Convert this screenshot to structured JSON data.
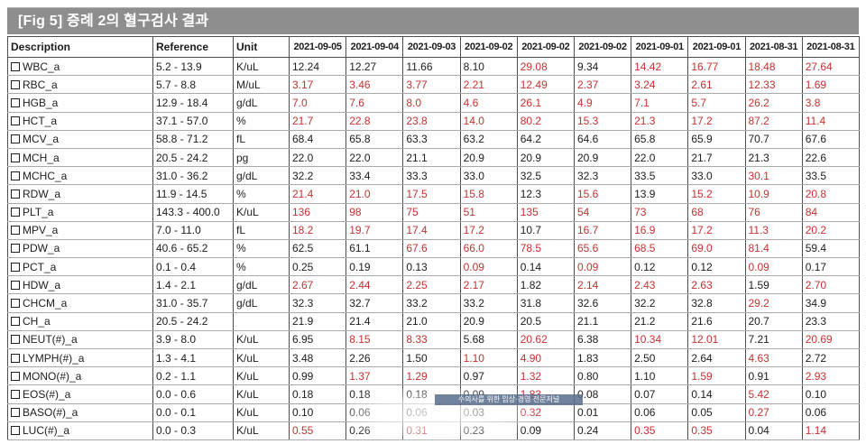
{
  "title": "[Fig 5] 증례 2의 혈구검사 결과",
  "watermark": {
    "text": "수의사를 위한 임상·경영 전문저널"
  },
  "colors": {
    "title_bg": "#8e8e8e",
    "title_text": "#ffffff",
    "normal_text": "#1d1d1d",
    "abnormal_text": "#c53232",
    "grid_vertical": "#4e4e4e",
    "grid_horizontal": "#aaaaaa",
    "watermark_bg": "#586c8c"
  },
  "table": {
    "headers": [
      "Description",
      "Reference",
      "Unit"
    ],
    "dates": [
      "2021-09-05",
      "2021-09-04",
      "2021-09-03",
      "2021-09-02",
      "2021-09-02",
      "2021-09-02",
      "2021-09-01",
      "2021-09-01",
      "2021-08-31",
      "2021-08-31"
    ],
    "rows": [
      {
        "name": "WBC_a",
        "reference": "5.2 - 13.9",
        "unit": "K/uL",
        "values": [
          "12.24",
          "12.27",
          "11.66",
          "8.10",
          "29.08",
          "9.34",
          "14.42",
          "16.77",
          "18.48",
          "27.64"
        ],
        "red": [
          false,
          false,
          false,
          false,
          true,
          false,
          true,
          true,
          true,
          true
        ]
      },
      {
        "name": "RBC_a",
        "reference": "5.7 - 8.8",
        "unit": "M/uL",
        "values": [
          "3.17",
          "3.46",
          "3.77",
          "2.21",
          "12.49",
          "2.37",
          "3.24",
          "2.61",
          "12.33",
          "1.69"
        ],
        "red": [
          true,
          true,
          true,
          true,
          true,
          true,
          true,
          true,
          true,
          true
        ]
      },
      {
        "name": "HGB_a",
        "reference": "12.9 - 18.4",
        "unit": "g/dL",
        "values": [
          "7.0",
          "7.6",
          "8.0",
          "4.6",
          "26.1",
          "4.9",
          "7.1",
          "5.7",
          "26.2",
          "3.8"
        ],
        "red": [
          true,
          true,
          true,
          true,
          true,
          true,
          true,
          true,
          true,
          true
        ]
      },
      {
        "name": "HCT_a",
        "reference": "37.1 - 57.0",
        "unit": "%",
        "values": [
          "21.7",
          "22.8",
          "23.8",
          "14.0",
          "80.2",
          "15.3",
          "21.3",
          "17.2",
          "87.2",
          "11.4"
        ],
        "red": [
          true,
          true,
          true,
          true,
          true,
          true,
          true,
          true,
          true,
          true
        ]
      },
      {
        "name": "MCV_a",
        "reference": "58.8 - 71.2",
        "unit": "fL",
        "values": [
          "68.4",
          "65.8",
          "63.3",
          "63.2",
          "64.2",
          "64.6",
          "65.8",
          "65.9",
          "70.7",
          "67.6"
        ],
        "red": [
          false,
          false,
          false,
          false,
          false,
          false,
          false,
          false,
          false,
          false
        ]
      },
      {
        "name": "MCH_a",
        "reference": "20.5 - 24.2",
        "unit": "pg",
        "values": [
          "22.0",
          "22.0",
          "21.1",
          "20.9",
          "20.9",
          "20.9",
          "22.0",
          "21.7",
          "21.3",
          "22.6"
        ],
        "red": [
          false,
          false,
          false,
          false,
          false,
          false,
          false,
          false,
          false,
          false
        ]
      },
      {
        "name": "MCHC_a",
        "reference": "31.0 - 36.2",
        "unit": "g/dL",
        "values": [
          "32.2",
          "33.4",
          "33.3",
          "33.0",
          "32.5",
          "32.3",
          "33.5",
          "33.0",
          "30.1",
          "33.5"
        ],
        "red": [
          false,
          false,
          false,
          false,
          false,
          false,
          false,
          false,
          true,
          false
        ]
      },
      {
        "name": "RDW_a",
        "reference": "11.9 - 14.5",
        "unit": "%",
        "values": [
          "21.4",
          "21.0",
          "17.5",
          "15.8",
          "12.3",
          "15.6",
          "13.9",
          "15.2",
          "10.9",
          "20.8"
        ],
        "red": [
          true,
          true,
          true,
          true,
          false,
          true,
          false,
          true,
          true,
          true
        ]
      },
      {
        "name": "PLT_a",
        "reference": "143.3 - 400.0",
        "unit": "K/uL",
        "values": [
          "136",
          "98",
          "75",
          "51",
          "135",
          "54",
          "73",
          "68",
          "76",
          "84"
        ],
        "red": [
          true,
          true,
          true,
          true,
          true,
          true,
          true,
          true,
          true,
          true
        ]
      },
      {
        "name": "MPV_a",
        "reference": "7.0 - 11.0",
        "unit": "fL",
        "values": [
          "18.2",
          "19.7",
          "17.4",
          "17.2",
          "10.7",
          "16.7",
          "16.9",
          "17.2",
          "11.3",
          "20.2"
        ],
        "red": [
          true,
          true,
          true,
          true,
          false,
          true,
          true,
          true,
          true,
          true
        ]
      },
      {
        "name": "PDW_a",
        "reference": "40.6 - 65.2",
        "unit": "%",
        "values": [
          "62.5",
          "61.1",
          "67.6",
          "66.0",
          "78.5",
          "65.6",
          "68.5",
          "69.0",
          "81.4",
          "59.4"
        ],
        "red": [
          false,
          false,
          true,
          true,
          true,
          true,
          true,
          true,
          true,
          false
        ]
      },
      {
        "name": "PCT_a",
        "reference": "0.1 - 0.4",
        "unit": "%",
        "values": [
          "0.25",
          "0.19",
          "0.13",
          "0.09",
          "0.14",
          "0.09",
          "0.12",
          "0.12",
          "0.09",
          "0.17"
        ],
        "red": [
          false,
          false,
          false,
          true,
          false,
          true,
          false,
          false,
          true,
          false
        ]
      },
      {
        "name": "HDW_a",
        "reference": "1.4 - 2.1",
        "unit": "g/dL",
        "values": [
          "2.67",
          "2.44",
          "2.25",
          "2.17",
          "1.82",
          "2.14",
          "2.43",
          "2.63",
          "1.59",
          "2.70"
        ],
        "red": [
          true,
          true,
          true,
          true,
          false,
          true,
          true,
          true,
          false,
          true
        ]
      },
      {
        "name": "CHCM_a",
        "reference": "31.0 - 35.7",
        "unit": "g/dL",
        "values": [
          "32.3",
          "32.7",
          "33.2",
          "33.2",
          "31.8",
          "32.6",
          "32.2",
          "32.8",
          "29.2",
          "34.9"
        ],
        "red": [
          false,
          false,
          false,
          false,
          false,
          false,
          false,
          false,
          true,
          false
        ]
      },
      {
        "name": "CH_a",
        "reference": "20.5 - 24.2",
        "unit": "",
        "values": [
          "21.9",
          "21.4",
          "21.0",
          "20.9",
          "20.5",
          "21.1",
          "21.2",
          "21.6",
          "20.7",
          "23.3"
        ],
        "red": [
          false,
          false,
          false,
          false,
          false,
          false,
          false,
          false,
          false,
          false
        ]
      },
      {
        "name": "NEUT(#)_a",
        "reference": "3.9 - 8.0",
        "unit": "K/uL",
        "values": [
          "6.95",
          "8.15",
          "8.33",
          "5.68",
          "20.62",
          "6.38",
          "10.34",
          "12.01",
          "7.21",
          "20.69"
        ],
        "red": [
          false,
          true,
          true,
          false,
          true,
          false,
          true,
          true,
          false,
          true
        ]
      },
      {
        "name": "LYMPH(#)_a",
        "reference": "1.3 - 4.1",
        "unit": "K/uL",
        "values": [
          "3.48",
          "2.26",
          "1.50",
          "1.10",
          "4.90",
          "1.83",
          "2.50",
          "2.64",
          "4.63",
          "2.72"
        ],
        "red": [
          false,
          false,
          false,
          true,
          true,
          false,
          false,
          false,
          true,
          false
        ]
      },
      {
        "name": "MONO(#)_a",
        "reference": "0.2 - 1.1",
        "unit": "K/uL",
        "values": [
          "0.99",
          "1.37",
          "1.29",
          "0.97",
          "1.32",
          "0.80",
          "1.10",
          "1.59",
          "0.91",
          "2.93"
        ],
        "red": [
          false,
          true,
          true,
          false,
          true,
          false,
          false,
          true,
          false,
          true
        ]
      },
      {
        "name": "EOS(#)_a",
        "reference": "0.0 - 0.6",
        "unit": "K/uL",
        "values": [
          "0.18",
          "0.18",
          "0.18",
          "0.09",
          "1.83",
          "0.08",
          "0.07",
          "0.14",
          "5.42",
          "0.10"
        ],
        "red": [
          false,
          false,
          false,
          false,
          true,
          false,
          false,
          false,
          true,
          false
        ]
      },
      {
        "name": "BASO(#)_a",
        "reference": "0.0 - 0.1",
        "unit": "K/uL",
        "values": [
          "0.10",
          "0.06",
          "0.06",
          "0.03",
          "0.32",
          "0.01",
          "0.06",
          "0.05",
          "0.27",
          "0.06"
        ],
        "red": [
          false,
          false,
          false,
          false,
          true,
          false,
          false,
          false,
          true,
          false
        ]
      },
      {
        "name": "LUC(#)_a",
        "reference": "0.0 - 0.3",
        "unit": "K/uL",
        "values": [
          "0.55",
          "0.26",
          "0.31",
          "0.23",
          "0.09",
          "0.24",
          "0.35",
          "0.35",
          "0.04",
          "1.14"
        ],
        "red": [
          true,
          false,
          true,
          false,
          false,
          false,
          true,
          true,
          false,
          true
        ]
      }
    ]
  }
}
